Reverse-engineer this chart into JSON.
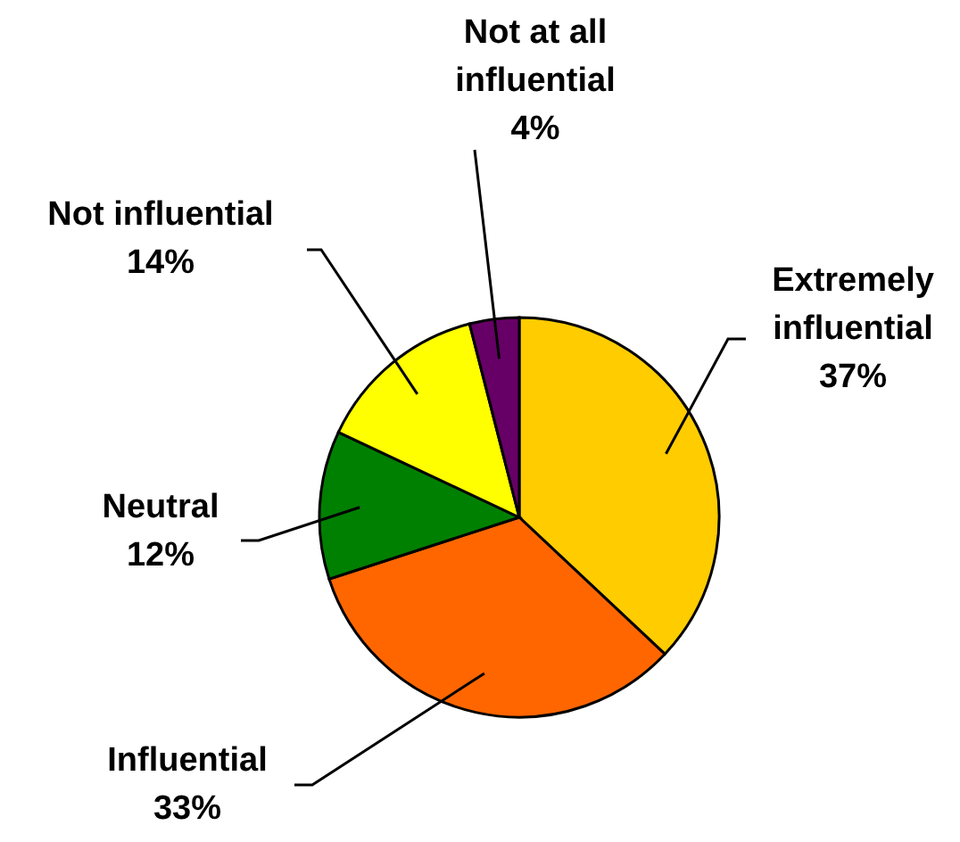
{
  "chart_data": {
    "type": "pie",
    "categories": [
      "Extremely influential",
      "Influential",
      "Neutral",
      "Not influential",
      "Not at all influential"
    ],
    "values": [
      37,
      33,
      12,
      14,
      4
    ],
    "value_labels": [
      "37%",
      "33%",
      "12%",
      "14%",
      "4%"
    ],
    "colors": [
      "#ffcc00",
      "#ff6600",
      "#008000",
      "#ffff00",
      "#660066"
    ],
    "legend": false
  }
}
